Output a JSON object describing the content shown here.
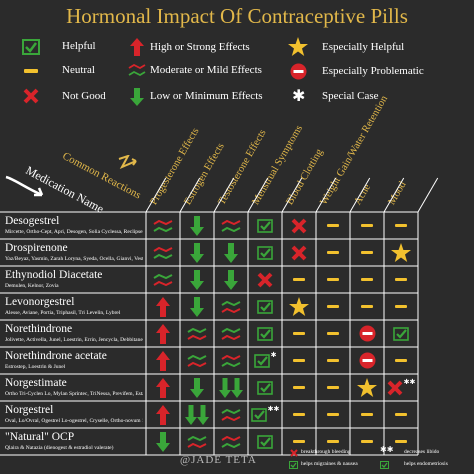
{
  "title": "Hormonal Impact Of Contraceptive Pills",
  "legend": {
    "helpful": "Helpful",
    "neutral": "Neutral",
    "not_good": "Not Good",
    "high": "High or Strong Effects",
    "moderate": "Moderate or Mild Effects",
    "low": "Low or Minimum Effects",
    "especially_helpful": "Especially Helpful",
    "especially_problematic": "Especially Problematic",
    "special_case": "Special Case"
  },
  "axis": {
    "common_reactions": "Common Reactions",
    "medication_name": "Medication Name"
  },
  "columns": [
    "Progesterone Effects",
    "Estrogen Effects",
    "Testosterone Effects",
    "Menstrual Symptoms",
    "Blood Clotting",
    "Weight Gain/Water Retention",
    "Acne",
    "Mood"
  ],
  "rows": [
    {
      "name": "Desogestrel",
      "brands": "Mircette, Ortho-Cept, Apri, Desogen, Solia Cyclessa, Reclipsen, Velivet, Caziant"
    },
    {
      "name": "Drospirenone",
      "brands": "Yaz/Beyaz, Yasmin, Zarah Loryna, Syeda, Ocella, Gianvi, Vestura, Nikki"
    },
    {
      "name": "Ethynodiol Diacetate",
      "brands": "Demulen, Kelnor, Zovia"
    },
    {
      "name": "Levonorgestrel",
      "brands": "Alesse, Aviane, Portia, Triphasil, Tri Levelin, Lybrel"
    },
    {
      "name": "Norethindrone",
      "brands": "Jolivette, Activella, Junel, Loestrin, Errin, Jencycla, Debbitane, Heather, Nora-BE"
    },
    {
      "name": "Norethindrone acetate",
      "brands": "Estrostep, Loestrin & Junel"
    },
    {
      "name": "Norgestimate",
      "brands": "Ortho Tri-Cyclen Lo, Mylan Sprintec, TriNessa, Previfem, Estarylla"
    },
    {
      "name": "Norgestrel",
      "brands": "Oval, Lo/Ovral, Ogestrel Lo-ogestrel, Cryselle, Ortho-novum 1/50"
    },
    {
      "name": "\"Natural\" OCP",
      "brands": "Qlaira & Natazia (dienogest & estradiol valerate)"
    }
  ],
  "cells": [
    [
      "mod-g",
      "low-g",
      "mod-g",
      "check",
      "x",
      "dash",
      "dash",
      "dash"
    ],
    [
      "mod-g",
      "low-g",
      "low-g",
      "check",
      "x",
      "dash",
      "dash",
      "star"
    ],
    [
      "mod-r",
      "low-g",
      "low-g",
      "x",
      "dash",
      "dash",
      "dash",
      "dash"
    ],
    [
      "high-r",
      "low-g",
      "mod-r",
      "check",
      "star",
      "dash",
      "dash",
      "dash"
    ],
    [
      "high-r",
      "mod-r",
      "mod-r",
      "check",
      "dash",
      "dash",
      "prob",
      "check"
    ],
    [
      "high-r",
      "mod-r",
      "mod-g",
      "check-snow",
      "dash",
      "dash",
      "prob",
      "dash"
    ],
    [
      "high-r",
      "low-g",
      "low2-g",
      "check",
      "dash",
      "dash",
      "star",
      "x-snow2"
    ],
    [
      "high-r",
      "low2-g",
      "mod-r",
      "check-snow2",
      "dash",
      "dash",
      "dash",
      "dash"
    ],
    [
      "low-g",
      "mod-r",
      "mod-g",
      "check",
      "dash",
      "dash",
      "dash",
      "dash"
    ]
  ],
  "footer": "@JADE TETA",
  "footnotes": {
    "breakthrough": "breakthrough bleeding",
    "migraines": "helps migraines & nausea",
    "libido": "decreases libido",
    "endometriosis": "helps endometriosis"
  },
  "colors": {
    "background": "#2b2b2b",
    "gold": "#e2b84a",
    "green": "#3aa63a",
    "red": "#d8242a",
    "yellow": "#f2c12e"
  }
}
